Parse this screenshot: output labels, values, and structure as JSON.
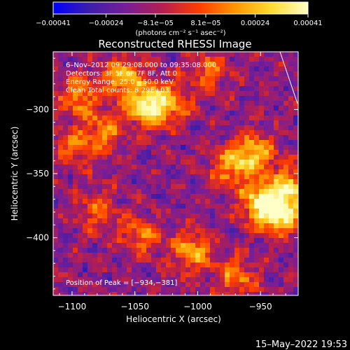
{
  "chart_data": {
    "type": "heatmap",
    "title": "Reconstructed RHESSI Image",
    "xlabel": "Heliocentric X (arcsec)",
    "ylabel": "Heliocentric Y (arcsec)",
    "xlim": [
      -1115,
      -920
    ],
    "ylim": [
      -445,
      -255
    ],
    "x_ticks": [
      -1100,
      -1050,
      -1000,
      -950
    ],
    "x_tick_labels": [
      "−1100",
      "−1050",
      "−1000",
      "−950"
    ],
    "y_ticks": [
      -300,
      -350,
      -400
    ],
    "y_tick_labels": [
      "−300",
      "−350",
      "−400"
    ],
    "colorbar": {
      "range": [
        -0.00041,
        0.00041
      ],
      "ticks": [
        -0.00041,
        -0.00024,
        -8.1e-05,
        8.1e-05,
        0.00024,
        0.00041
      ],
      "tick_labels": [
        "−0.00041",
        "−0.00024",
        "−8.1e−05",
        "8.1e−05",
        "0.00024",
        "0.00041"
      ],
      "units_label": "(photons cm⁻² s⁻¹ asec⁻²)",
      "colormap": [
        "#0000ff",
        "#3c1eaa",
        "#781e96",
        "#b41e50",
        "#ff3c00",
        "#ff9600",
        "#ffdc32",
        "#ffffc8"
      ]
    },
    "annotations": {
      "time_range": "6–Nov–2012 09:29:08.000 to 09:35:08.000",
      "detectors": "Detectors: 3F 5F 6F 7F 8F, Att 0",
      "energy": "Energy Range: 25.0 – 50.0 keV",
      "clean": "Clean      Total counts: 8.29E+03",
      "peak": "Position of Peak = [−934,−381]"
    },
    "hotspots": [
      {
        "x": -1040,
        "y": -298,
        "amp": 1.0
      },
      {
        "x": -1060,
        "y": -275,
        "amp": 0.8
      },
      {
        "x": -1095,
        "y": -290,
        "amp": 0.6
      },
      {
        "x": -1075,
        "y": -318,
        "amp": 0.55
      },
      {
        "x": -1020,
        "y": -295,
        "amp": 0.55
      },
      {
        "x": -935,
        "y": -381,
        "amp": 1.0
      },
      {
        "x": -950,
        "y": -372,
        "amp": 0.85
      },
      {
        "x": -955,
        "y": -335,
        "amp": 0.8
      },
      {
        "x": -975,
        "y": -345,
        "amp": 0.6
      },
      {
        "x": -925,
        "y": -360,
        "amp": 0.7
      },
      {
        "x": -1005,
        "y": -410,
        "amp": 0.7
      },
      {
        "x": -1045,
        "y": -398,
        "amp": 0.5
      },
      {
        "x": -970,
        "y": -430,
        "amp": 0.55
      },
      {
        "x": -1100,
        "y": -330,
        "amp": 0.45
      },
      {
        "x": -1080,
        "y": -380,
        "amp": 0.45
      },
      {
        "x": -990,
        "y": -270,
        "amp": 0.45
      }
    ]
  },
  "footer_date": "15–May–2022 19:53"
}
